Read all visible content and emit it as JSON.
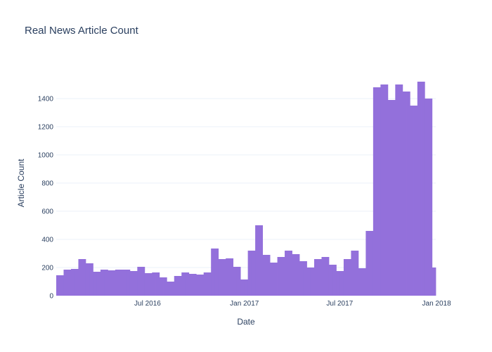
{
  "chart_data": {
    "type": "bar",
    "title": "Real News Article Count",
    "xlabel": "Date",
    "ylabel": "Article Count",
    "ylim": [
      0,
      1600
    ],
    "y_ticks": [
      0,
      200,
      400,
      600,
      800,
      1000,
      1200,
      1400
    ],
    "x_ticks": [
      {
        "label": "Jul 2016",
        "date": "2016-07-01"
      },
      {
        "label": "Jan 2017",
        "date": "2017-01-01"
      },
      {
        "label": "Jul 2017",
        "date": "2017-07-01"
      },
      {
        "label": "Jan 2018",
        "date": "2018-01-01"
      }
    ],
    "grid": true,
    "bar_color": "#9370db",
    "bin": "weekly",
    "x": [
      "2016-01-13",
      "2016-01-20",
      "2016-01-27",
      "2016-02-03",
      "2016-02-10",
      "2016-02-17",
      "2016-02-24",
      "2016-03-02",
      "2016-03-09",
      "2016-03-16",
      "2016-03-23",
      "2016-03-30",
      "2016-04-06",
      "2016-04-13",
      "2016-04-20",
      "2016-04-27",
      "2016-05-04",
      "2016-05-11",
      "2016-05-18",
      "2016-05-25",
      "2016-06-01",
      "2016-06-08",
      "2016-06-15",
      "2016-06-22",
      "2016-06-29",
      "2016-07-06",
      "2016-07-13",
      "2016-07-20",
      "2016-07-27",
      "2016-08-03",
      "2016-08-10",
      "2016-08-17",
      "2016-08-24",
      "2016-08-31",
      "2016-09-07",
      "2016-09-14",
      "2016-09-21",
      "2016-09-28",
      "2016-10-05",
      "2016-10-12",
      "2016-10-19",
      "2016-10-26",
      "2016-11-02",
      "2016-11-09",
      "2016-11-16",
      "2016-11-23",
      "2016-11-30",
      "2016-12-07",
      "2016-12-14",
      "2016-12-21",
      "2016-12-28",
      "2017-01-04",
      "2017-01-11",
      "2017-01-18",
      "2017-01-25",
      "2017-02-01",
      "2017-02-08",
      "2017-02-15",
      "2017-02-22",
      "2017-03-01",
      "2017-03-08",
      "2017-03-15",
      "2017-03-22",
      "2017-03-29",
      "2017-04-05",
      "2017-04-12",
      "2017-04-19",
      "2017-04-26",
      "2017-05-03",
      "2017-05-10",
      "2017-05-17",
      "2017-05-24",
      "2017-05-31",
      "2017-06-07",
      "2017-06-14",
      "2017-06-21",
      "2017-06-28",
      "2017-07-05",
      "2017-07-12",
      "2017-07-19",
      "2017-07-26",
      "2017-08-02",
      "2017-08-09",
      "2017-08-16",
      "2017-08-23",
      "2017-08-30",
      "2017-09-06",
      "2017-09-13",
      "2017-09-20",
      "2017-09-27",
      "2017-10-04",
      "2017-10-11",
      "2017-10-18",
      "2017-10-25",
      "2017-11-01",
      "2017-11-08",
      "2017-11-15",
      "2017-11-22",
      "2017-11-29",
      "2017-12-06",
      "2017-12-13",
      "2017-12-20",
      "2017-12-27"
    ],
    "values": [
      145,
      145,
      185,
      185,
      190,
      190,
      260,
      260,
      230,
      230,
      170,
      170,
      185,
      185,
      180,
      180,
      185,
      185,
      185,
      185,
      175,
      175,
      205,
      205,
      160,
      160,
      165,
      165,
      130,
      130,
      100,
      100,
      140,
      140,
      165,
      165,
      155,
      155,
      150,
      150,
      165,
      165,
      335,
      335,
      260,
      260,
      265,
      265,
      205,
      205,
      115,
      115,
      320,
      320,
      500,
      500,
      290,
      290,
      235,
      235,
      275,
      275,
      320,
      320,
      295,
      295,
      245,
      245,
      200,
      200,
      260,
      260,
      275,
      275,
      220,
      220,
      175,
      175,
      260,
      260,
      320,
      320,
      195,
      195,
      460,
      460,
      1480,
      1480,
      1500,
      1500,
      1390,
      1390,
      1500,
      1500,
      1450,
      1450,
      1350,
      1350,
      1520,
      1520,
      1400,
      1400,
      200
    ]
  }
}
